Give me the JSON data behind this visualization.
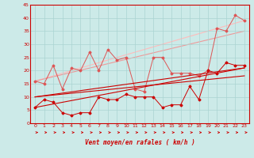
{
  "xlabel": "Vent moyen/en rafales ( km/h )",
  "xlim": [
    -0.5,
    23.5
  ],
  "ylim": [
    0,
    45
  ],
  "yticks": [
    0,
    5,
    10,
    15,
    20,
    25,
    30,
    35,
    40,
    45
  ],
  "xticks": [
    0,
    1,
    2,
    3,
    4,
    5,
    6,
    7,
    8,
    9,
    10,
    11,
    12,
    13,
    14,
    15,
    16,
    17,
    18,
    19,
    20,
    21,
    22,
    23
  ],
  "bg_color": "#cceae8",
  "grid_color": "#aad4d2",
  "dark_red": "#cc0000",
  "mid_red": "#dd5555",
  "light_red": "#ee9999",
  "very_light_red": "#ffbbbb",
  "line1_dark_jagged": [
    0,
    6,
    1,
    9,
    2,
    8,
    3,
    4,
    4,
    3,
    5,
    4,
    6,
    4,
    7,
    10,
    8,
    9,
    9,
    9,
    10,
    11,
    11,
    10,
    12,
    10,
    13,
    10,
    14,
    6,
    15,
    7,
    16,
    7,
    17,
    14,
    18,
    9,
    19,
    20,
    20,
    19,
    21,
    23,
    22,
    22,
    23,
    22
  ],
  "line2_dark_straight1": [
    0,
    6,
    23,
    21
  ],
  "line3_dark_straight2": [
    0,
    10,
    23,
    18
  ],
  "line4_dark_straight3": [
    0,
    10,
    23,
    21
  ],
  "line5_mid_jagged": [
    0,
    16,
    1,
    15,
    2,
    22,
    3,
    13,
    4,
    21,
    5,
    20,
    6,
    27,
    7,
    20,
    8,
    28,
    9,
    24,
    10,
    25,
    11,
    13,
    12,
    12,
    13,
    25,
    14,
    25,
    15,
    19,
    16,
    19,
    17,
    19,
    18,
    18,
    19,
    20,
    20,
    36,
    21,
    35,
    22,
    41,
    23,
    39
  ],
  "line6_light_straight1": [
    0,
    16,
    23,
    35
  ],
  "line7_light_straight2": [
    0,
    16,
    23,
    39
  ]
}
